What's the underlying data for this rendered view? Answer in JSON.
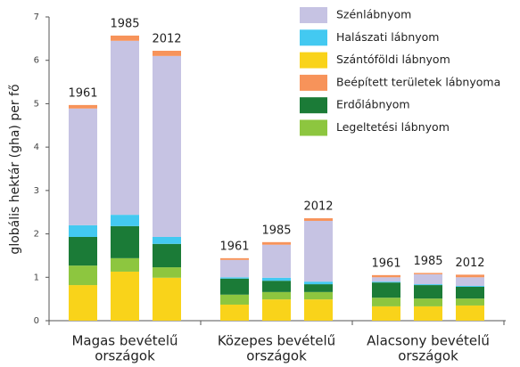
{
  "chart_data": {
    "type": "bar",
    "stacked": true,
    "ylabel": "globális hektár (gha) per fő",
    "ylim": [
      0,
      7
    ],
    "yticks": [
      0,
      1,
      2,
      3,
      4,
      5,
      6,
      7
    ],
    "categories": [
      "1961",
      "1985",
      "2012",
      "1961",
      "1985",
      "2012",
      "1961",
      "1985",
      "2012"
    ],
    "groups": [
      {
        "label": [
          "Magas bevételű",
          "országok"
        ]
      },
      {
        "label": [
          "Közepes bevételű",
          "országok"
        ]
      },
      {
        "label": [
          "Alacsony bevételű",
          "országok"
        ]
      }
    ],
    "series": [
      {
        "name": "Szénlábnyom",
        "color": "#c6c3e3",
        "values": [
          2.69,
          4.01,
          4.17,
          0.4,
          0.76,
          1.4,
          0.1,
          0.23,
          0.2
        ]
      },
      {
        "name": "Halászati lábnyom",
        "color": "#43c9f1",
        "values": [
          0.27,
          0.26,
          0.16,
          0.03,
          0.07,
          0.06,
          0.02,
          0.02,
          0.02
        ]
      },
      {
        "name": "Szántóföldi lábnyom",
        "color": "#f9d31a",
        "values": [
          0.82,
          1.13,
          0.99,
          0.37,
          0.49,
          0.49,
          0.33,
          0.33,
          0.35
        ]
      },
      {
        "name": "Beépített területek lábnyoma",
        "color": "#f7935a",
        "values": [
          0.08,
          0.12,
          0.12,
          0.04,
          0.06,
          0.06,
          0.05,
          0.03,
          0.06
        ]
      },
      {
        "name": "Erdőlábnyom",
        "color": "#1b7b37",
        "values": [
          0.66,
          0.74,
          0.54,
          0.37,
          0.26,
          0.18,
          0.35,
          0.31,
          0.27
        ]
      },
      {
        "name": "Legeltetési lábnyom",
        "color": "#8dc63f",
        "values": [
          0.45,
          0.31,
          0.24,
          0.23,
          0.17,
          0.17,
          0.2,
          0.18,
          0.16
        ]
      }
    ]
  }
}
